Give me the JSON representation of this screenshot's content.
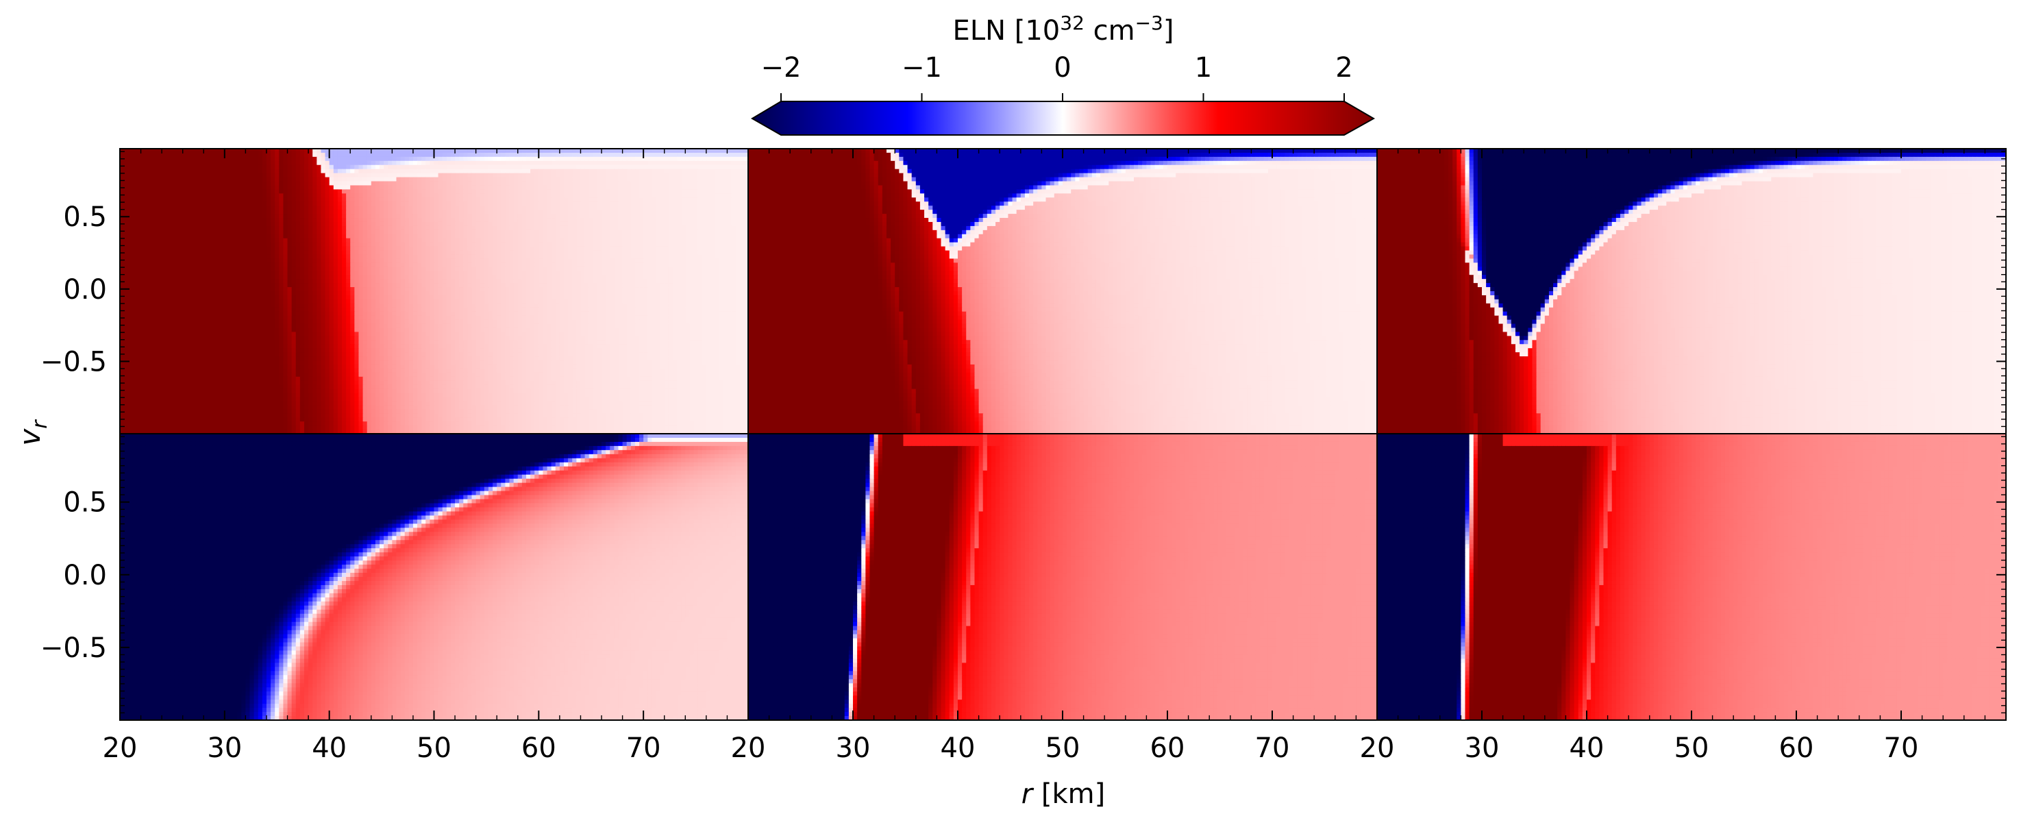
{
  "chart_data": {
    "type": "heatmap",
    "layout": "2 rows x 3 columns, shared axes",
    "xlabel_italic": "r",
    "xlabel_rest": " [km]",
    "ylabel_base": "v",
    "ylabel_sub": "r",
    "xlim": [
      20,
      80
    ],
    "ylim": [
      -1,
      0.97
    ],
    "x_ticks": [
      "20",
      "30",
      "40",
      "50",
      "60",
      "70"
    ],
    "y_ticks": [
      "0.5",
      "0.0",
      "−0.5"
    ],
    "y_tick_values": [
      0.5,
      0.0,
      -0.5
    ],
    "colorbar": {
      "label_prefix": "ELN [10",
      "label_sup1": "32",
      "label_mid": " cm",
      "label_sup2": "−3",
      "label_suffix": "]",
      "range": [
        -2,
        2
      ],
      "ticks": [
        "−2",
        "−1",
        "0",
        "1",
        "2"
      ],
      "tick_values": [
        -2,
        -1,
        0,
        1,
        2
      ],
      "extend": "both",
      "colormap": "seismic",
      "colors": [
        "#00004c",
        "#0000ff",
        "#ffffff",
        "#ff0000",
        "#800000"
      ]
    },
    "panels": [
      {
        "row": 1,
        "col": 1,
        "left_region_eln": 2.0,
        "boundary_r_at_vr_min": 37.5,
        "boundary_r_at_vr_max": 35.0,
        "top_band_eln": -0.3,
        "trough_r": 40.5,
        "trough_vr": 0.78,
        "far_field_eln": 0.15
      },
      {
        "row": 1,
        "col": 2,
        "left_region_eln": 2.0,
        "boundary_r_at_vr_min": 36.5,
        "boundary_r_at_vr_max": 32.0,
        "top_band_eln": -1.5,
        "trough_r": 39.5,
        "trough_vr": 0.3,
        "far_field_eln": 0.15
      },
      {
        "row": 1,
        "col": 3,
        "left_region_eln": 2.0,
        "boundary_r_at_vr_min": 29.5,
        "boundary_r_at_vr_max": 28.0,
        "top_band_eln": -2.0,
        "trough_r": 34.0,
        "trough_vr": -0.4,
        "far_field_eln": 0.15
      },
      {
        "row": 2,
        "col": 1,
        "left_region_eln": -2.0,
        "boundary_r_at_vr_min": 33.5,
        "boundary_r_at_vr_max": 70.0,
        "far_field_eln": 0.15
      },
      {
        "row": 2,
        "col": 2,
        "left_region_eln": -2.0,
        "boundary_r_at_vr_min": 29.5,
        "boundary_r_at_vr_max": 32.0,
        "mid_region_eln": 2.0,
        "far_field_eln": 0.4
      },
      {
        "row": 2,
        "col": 3,
        "left_region_eln": -2.0,
        "boundary_r_at_vr_min": 28.0,
        "boundary_r_at_vr_max": 29.0,
        "mid_region_eln": 2.0,
        "far_field_eln": 0.4
      }
    ]
  }
}
